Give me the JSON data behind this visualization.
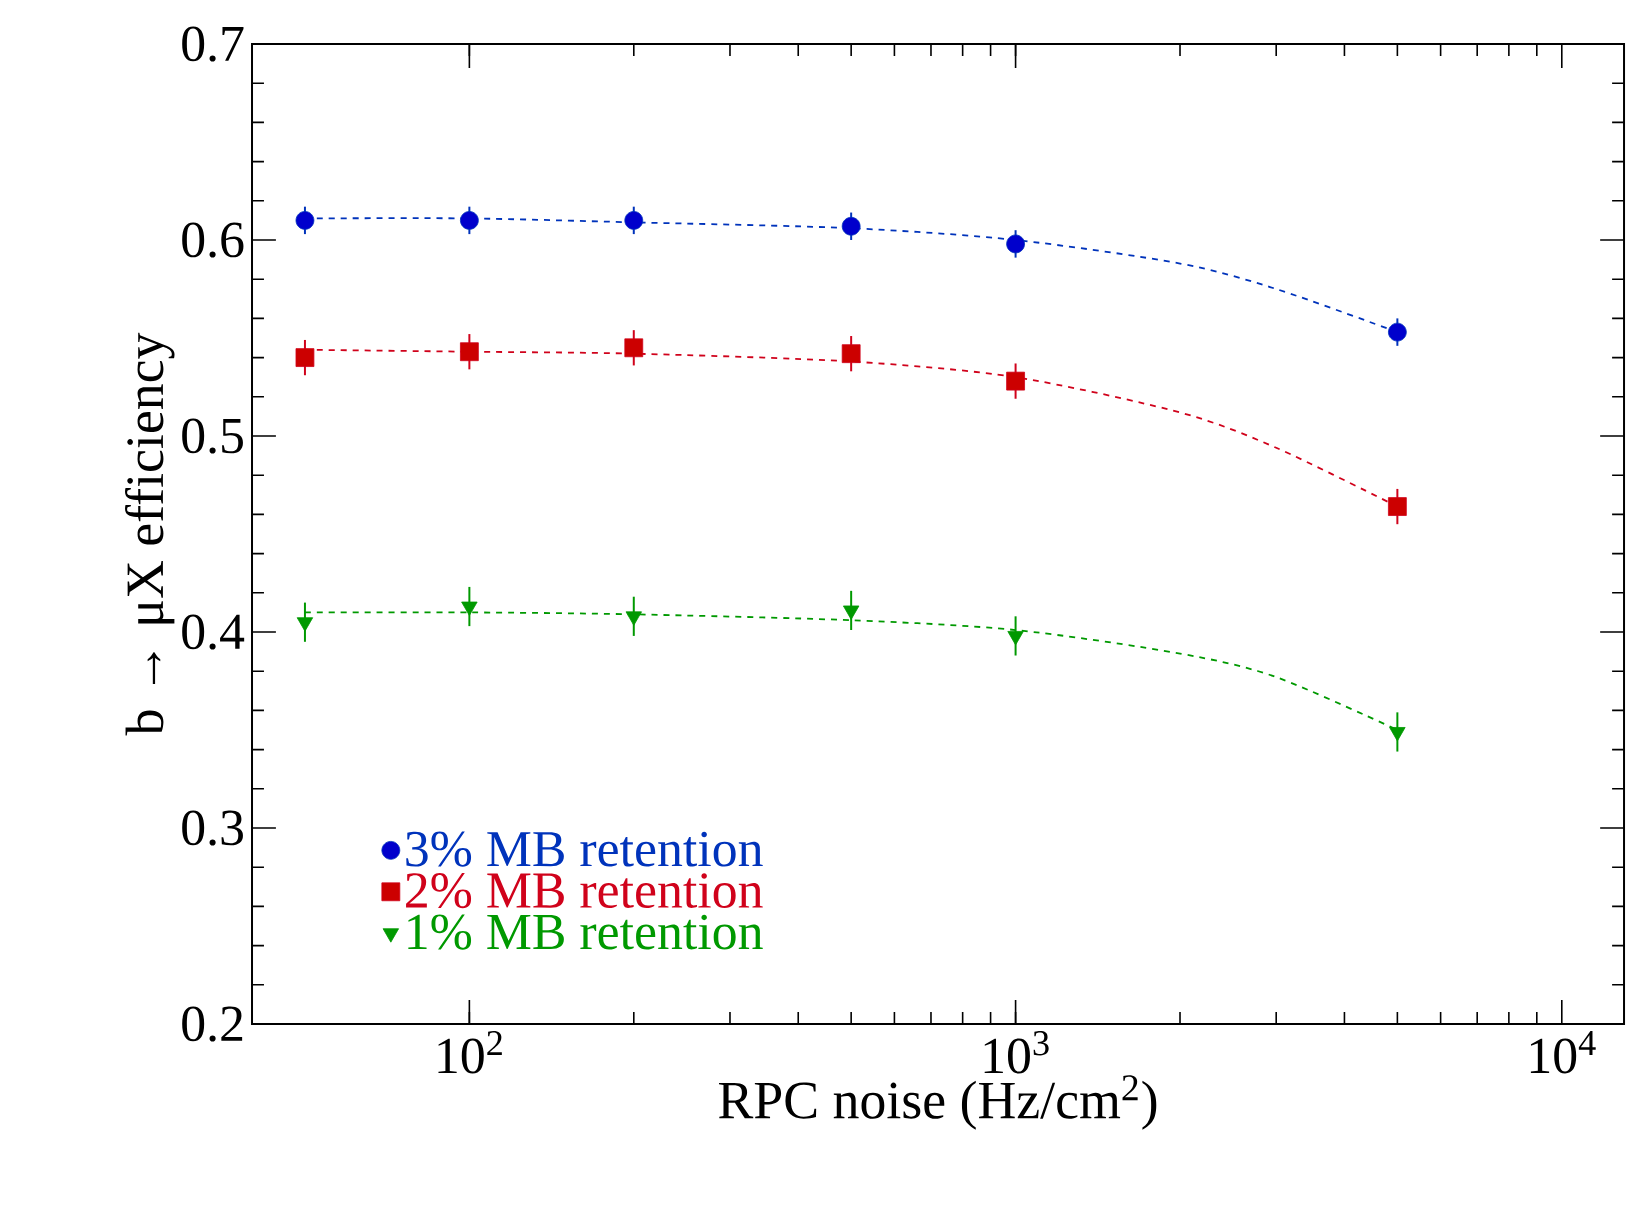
{
  "chart_data": {
    "type": "scatter",
    "xlabel": "RPC noise (Hz/cm$^{2}$)",
    "ylabel": "b → μX efficiency",
    "log": "x",
    "xlim": [
      40,
      13000
    ],
    "ylim": [
      0.2,
      0.7
    ],
    "xticks": [
      {
        "value": 100,
        "label": "10$^{2}$"
      },
      {
        "value": 1000,
        "label": "10$^{3}$"
      },
      {
        "value": 10000,
        "label": "10$^{4}$"
      }
    ],
    "yticks": [
      0.2,
      0.3,
      0.4,
      0.5,
      0.6,
      0.7
    ],
    "legend": "bottom left",
    "grid": false,
    "series": [
      {
        "name": "3% MB retention",
        "marker": "circle",
        "color": "#0033bb",
        "x": [
          50,
          100,
          200,
          500,
          1000,
          5000
        ],
        "values": [
          0.61,
          0.61,
          0.61,
          0.607,
          0.598,
          0.553
        ],
        "errors": [
          0.007,
          0.007,
          0.007,
          0.007,
          0.007,
          0.007
        ]
      },
      {
        "name": "2% MB retention",
        "marker": "square",
        "color": "#d0021b",
        "x": [
          50,
          100,
          200,
          500,
          1000,
          5000
        ],
        "values": [
          0.54,
          0.543,
          0.545,
          0.542,
          0.528,
          0.464
        ],
        "errors": [
          0.009,
          0.009,
          0.009,
          0.009,
          0.009,
          0.009
        ]
      },
      {
        "name": "1% MB retention",
        "marker": "triangle",
        "color": "#009900",
        "x": [
          50,
          100,
          200,
          500,
          1000,
          5000
        ],
        "values": [
          0.405,
          0.413,
          0.408,
          0.411,
          0.398,
          0.349
        ],
        "errors": [
          0.01,
          0.01,
          0.01,
          0.01,
          0.01,
          0.01
        ]
      },
      {
        "type": "line",
        "line_style": "dashed",
        "marker": "none",
        "color": "#0033bb",
        "x": [
          50,
          100,
          200,
          500,
          1000,
          2000,
          3000,
          5000
        ],
        "values": [
          0.611,
          0.611,
          0.609,
          0.606,
          0.6,
          0.588,
          0.575,
          0.553
        ]
      },
      {
        "type": "line",
        "line_style": "dashed",
        "marker": "none",
        "color": "#d0021b",
        "x": [
          50,
          100,
          200,
          500,
          1000,
          2000,
          3000,
          5000
        ],
        "values": [
          0.544,
          0.543,
          0.542,
          0.538,
          0.53,
          0.512,
          0.494,
          0.464
        ]
      },
      {
        "type": "line",
        "line_style": "dashed",
        "marker": "none",
        "color": "#009900",
        "x": [
          50,
          100,
          200,
          500,
          1000,
          2000,
          3000,
          5000
        ],
        "values": [
          0.41,
          0.41,
          0.409,
          0.406,
          0.401,
          0.389,
          0.377,
          0.35
        ]
      }
    ]
  }
}
